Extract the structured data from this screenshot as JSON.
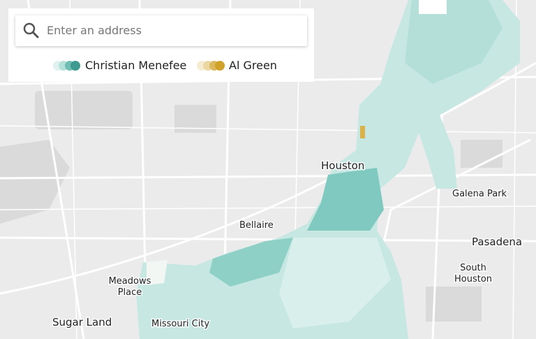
{
  "search": {
    "placeholder": "Enter an address"
  },
  "legend": [
    {
      "label": "Christian Menefee"
    },
    {
      "label": "Al Green"
    }
  ],
  "places": [
    {
      "lines": [
        "Houston"
      ]
    },
    {
      "lines": [
        "Galena Park"
      ]
    },
    {
      "lines": [
        "Bellaire"
      ]
    },
    {
      "lines": [
        "Pasadena"
      ]
    },
    {
      "lines": [
        "South",
        "Houston"
      ]
    },
    {
      "lines": [
        "Meadows",
        "Place"
      ]
    },
    {
      "lines": [
        "Sugar Land"
      ]
    },
    {
      "lines": [
        "Missouri City"
      ]
    }
  ]
}
